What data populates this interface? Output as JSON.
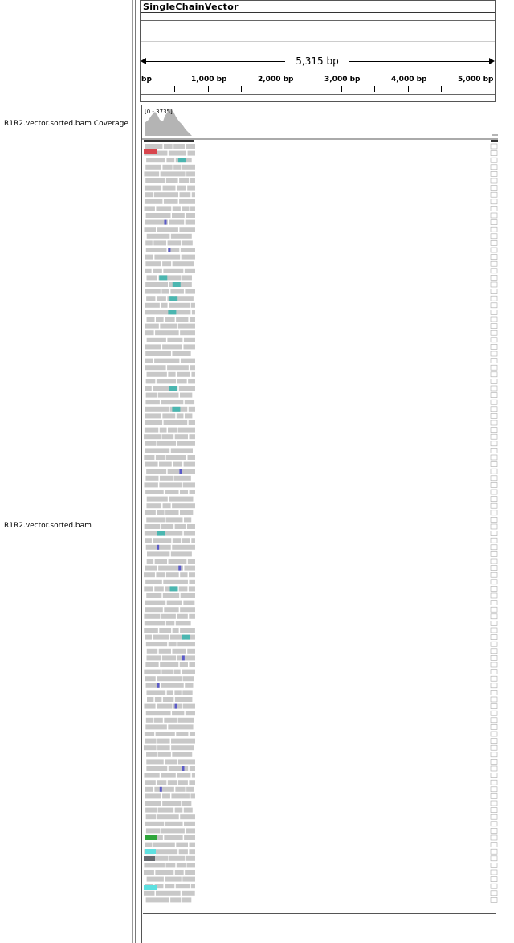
{
  "ruler": {
    "genome_name": "SingleChainVector",
    "span_label": "5,315 bp",
    "tick_labels": [
      "bp",
      "1,000 bp",
      "2,000 bp",
      "3,000 bp",
      "4,000 bp",
      "5,000 bp"
    ]
  },
  "tracks": {
    "coverage_name": "R1R2.vector.sorted.bam Coverage",
    "coverage_range": "[0 - 3735]",
    "alignment_name": "R1R2.vector.sorted.bam"
  },
  "colors": {
    "read_gray": "#c8c8c8",
    "coverage_gray": "#b4b4b4",
    "teal": "#4bb6b0",
    "blue": "#5a5ac8",
    "red": "#d8454d",
    "green": "#2fa63c",
    "dark": "#666a70",
    "cyan": "#5ee0e0"
  }
}
